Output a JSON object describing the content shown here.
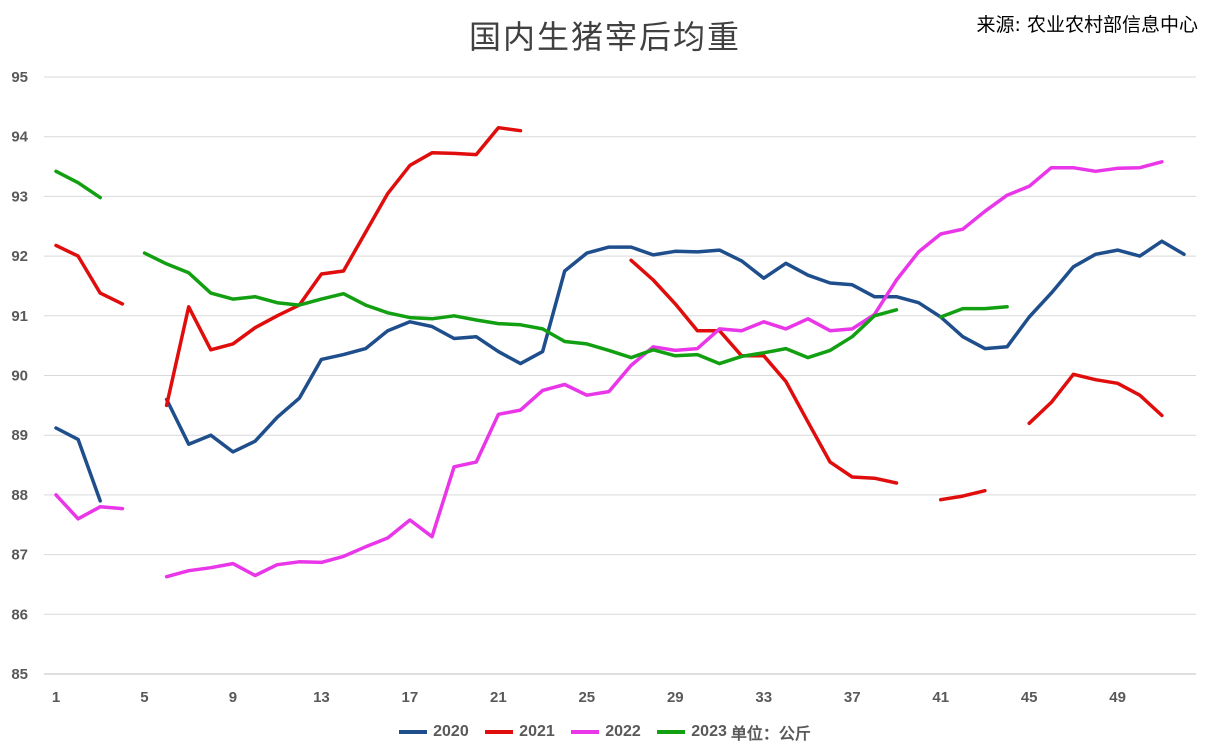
{
  "chart_data": {
    "type": "line",
    "title": "国内生猪宰后均重",
    "source": "来源: 农业农村部信息中心",
    "unit_label": "单位：公斤",
    "xlabel": "",
    "ylabel": "",
    "x_ticks": [
      1,
      5,
      9,
      13,
      17,
      21,
      25,
      29,
      33,
      37,
      41,
      45,
      49
    ],
    "y_ticks": [
      85,
      86,
      87,
      88,
      89,
      90,
      91,
      92,
      93,
      94,
      95
    ],
    "xlim": [
      1,
      52
    ],
    "ylim": [
      85,
      95
    ],
    "grid": "horizontal",
    "legend_position": "bottom",
    "series": [
      {
        "name": "2020",
        "color": "#1f4e8c",
        "values": [
          89.12,
          88.93,
          87.9,
          null,
          null,
          89.6,
          88.85,
          89.0,
          88.72,
          88.9,
          89.3,
          89.62,
          90.27,
          90.35,
          90.45,
          90.75,
          90.9,
          90.82,
          90.62,
          90.65,
          90.4,
          90.2,
          90.4,
          91.75,
          92.05,
          92.15,
          92.15,
          92.02,
          92.08,
          92.07,
          92.1,
          91.92,
          91.63,
          91.88,
          91.68,
          91.55,
          91.52,
          91.32,
          91.32,
          91.22,
          90.98,
          90.65,
          90.45,
          90.48,
          90.98,
          91.38,
          91.82,
          92.03,
          92.1,
          92.0,
          92.25,
          92.03
        ]
      },
      {
        "name": "2021",
        "color": "#e00d0d",
        "values": [
          92.18,
          92.0,
          91.38,
          91.2,
          null,
          89.5,
          91.15,
          90.43,
          90.53,
          90.8,
          91.0,
          91.18,
          91.7,
          91.75,
          92.4,
          93.05,
          93.52,
          93.73,
          93.72,
          93.7,
          94.15,
          94.1,
          null,
          null,
          null,
          null,
          91.93,
          91.6,
          91.2,
          90.75,
          90.75,
          90.33,
          90.33,
          89.9,
          89.22,
          88.55,
          88.3,
          88.28,
          88.2,
          null,
          87.92,
          87.98,
          88.07,
          null,
          89.2,
          89.55,
          90.02,
          89.93,
          89.87,
          89.67,
          89.33,
          null
        ]
      },
      {
        "name": "2022",
        "color": "#e936e9",
        "values": [
          88.0,
          87.6,
          87.8,
          87.77,
          null,
          86.63,
          86.73,
          86.78,
          86.85,
          86.65,
          86.83,
          86.88,
          86.87,
          86.97,
          87.13,
          87.28,
          87.58,
          87.3,
          88.47,
          88.55,
          89.35,
          89.42,
          89.75,
          89.85,
          89.67,
          89.73,
          90.17,
          90.48,
          90.42,
          90.45,
          90.78,
          90.75,
          90.9,
          90.78,
          90.95,
          90.75,
          90.78,
          91.02,
          91.6,
          92.07,
          92.37,
          92.45,
          92.75,
          93.02,
          93.17,
          93.48,
          93.48,
          93.42,
          93.47,
          93.48,
          93.58,
          null
        ]
      },
      {
        "name": "2023",
        "color": "#12a012",
        "values": [
          93.42,
          93.23,
          92.98,
          null,
          92.05,
          91.87,
          91.72,
          91.38,
          91.28,
          91.32,
          91.22,
          91.18,
          91.28,
          91.37,
          91.18,
          91.05,
          90.97,
          90.95,
          91.0,
          90.93,
          90.87,
          90.85,
          90.78,
          90.57,
          90.53,
          90.42,
          90.3,
          90.43,
          90.33,
          90.35,
          90.2,
          90.32,
          90.38,
          90.45,
          90.3,
          90.42,
          90.65,
          91.0,
          91.1,
          null,
          90.98,
          91.12,
          91.12,
          91.15,
          null,
          null,
          null,
          null,
          null,
          null,
          null,
          null
        ]
      }
    ]
  }
}
